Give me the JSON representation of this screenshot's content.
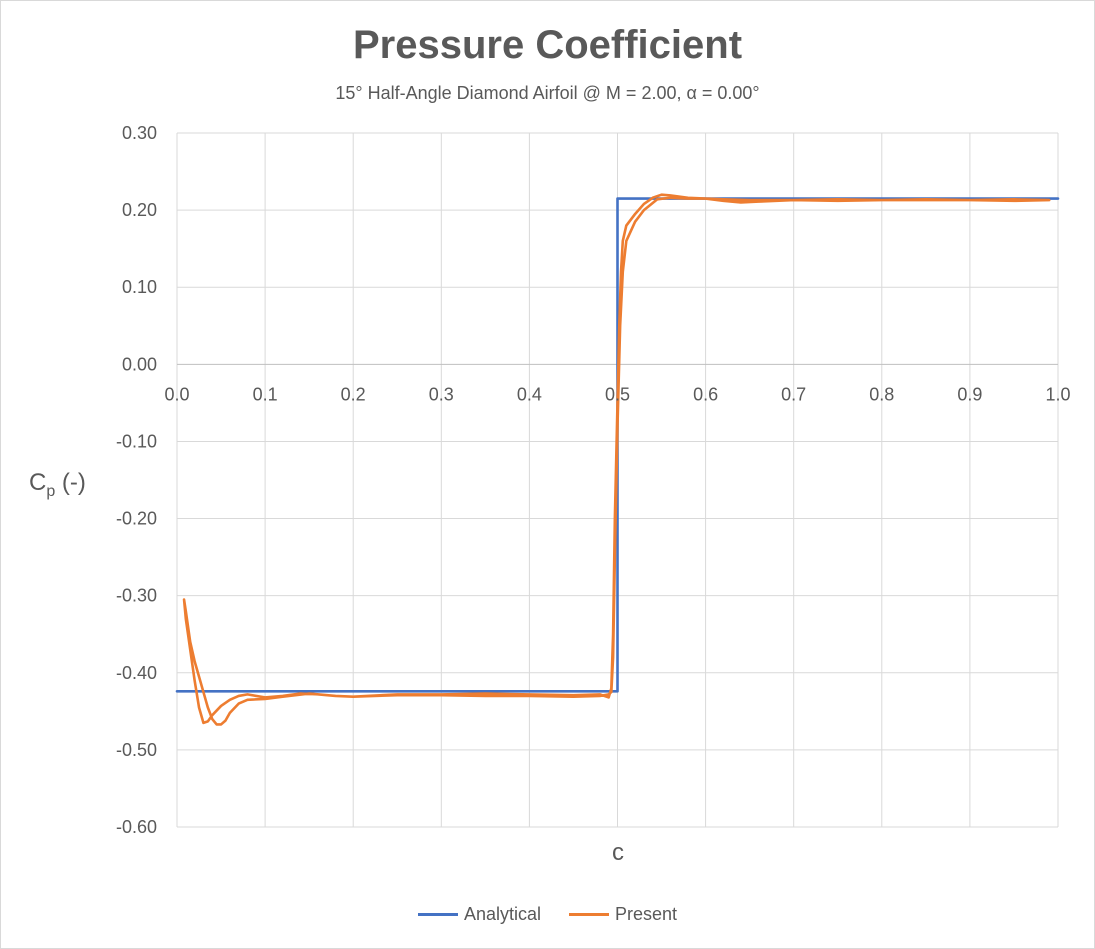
{
  "chart_data": {
    "type": "line",
    "title": "Pressure Coefficient",
    "subtitle": "15° Half-Angle Diamond Airfoil @ M = 2.00, α = 0.00°",
    "xlabel": "c",
    "ylabel": {
      "main": "C",
      "sub": "p",
      "suffix": " (-)"
    },
    "xlim": [
      0.0,
      1.0
    ],
    "ylim": [
      -0.6,
      0.3
    ],
    "xticks": [
      0.0,
      0.1,
      0.2,
      0.3,
      0.4,
      0.5,
      0.6,
      0.7,
      0.8,
      0.9,
      1.0
    ],
    "xtick_labels": [
      "0.0",
      "0.1",
      "0.2",
      "0.3",
      "0.4",
      "0.5",
      "0.6",
      "0.7",
      "0.8",
      "0.9",
      "1.0"
    ],
    "yticks": [
      0.3,
      0.2,
      0.1,
      0.0,
      -0.1,
      -0.2,
      -0.3,
      -0.4,
      -0.5,
      -0.6
    ],
    "ytick_labels": [
      "0.30",
      "0.20",
      "0.10",
      "0.00",
      "-0.10",
      "-0.20",
      "-0.30",
      "-0.40",
      "-0.50",
      "-0.60"
    ],
    "grid": true,
    "legend_position": "bottom",
    "series": [
      {
        "name": "Analytical",
        "color": "#4472C4",
        "points": [
          [
            0.0,
            -0.424
          ],
          [
            0.5,
            -0.424
          ],
          [
            0.5,
            0.215
          ],
          [
            1.0,
            0.215
          ]
        ]
      },
      {
        "name": "Present",
        "color": "#ED7D31",
        "points": [
          [
            0.008,
            -0.305
          ],
          [
            0.01,
            -0.33
          ],
          [
            0.015,
            -0.37
          ],
          [
            0.02,
            -0.41
          ],
          [
            0.025,
            -0.445
          ],
          [
            0.03,
            -0.465
          ],
          [
            0.035,
            -0.463
          ],
          [
            0.04,
            -0.455
          ],
          [
            0.05,
            -0.443
          ],
          [
            0.06,
            -0.435
          ],
          [
            0.07,
            -0.43
          ],
          [
            0.08,
            -0.428
          ],
          [
            0.1,
            -0.432
          ],
          [
            0.12,
            -0.43
          ],
          [
            0.14,
            -0.427
          ],
          [
            0.16,
            -0.428
          ],
          [
            0.18,
            -0.43
          ],
          [
            0.2,
            -0.431
          ],
          [
            0.25,
            -0.428
          ],
          [
            0.3,
            -0.428
          ],
          [
            0.35,
            -0.427
          ],
          [
            0.4,
            -0.428
          ],
          [
            0.45,
            -0.429
          ],
          [
            0.48,
            -0.428
          ],
          [
            0.49,
            -0.432
          ],
          [
            0.493,
            -0.42
          ],
          [
            0.495,
            -0.35
          ],
          [
            0.497,
            -0.2
          ],
          [
            0.5,
            -0.05
          ],
          [
            0.502,
            0.05
          ],
          [
            0.504,
            0.12
          ],
          [
            0.506,
            0.16
          ],
          [
            0.51,
            0.18
          ],
          [
            0.52,
            0.195
          ],
          [
            0.53,
            0.208
          ],
          [
            0.54,
            0.216
          ],
          [
            0.55,
            0.22
          ],
          [
            0.56,
            0.219
          ],
          [
            0.58,
            0.216
          ],
          [
            0.6,
            0.215
          ],
          [
            0.62,
            0.212
          ],
          [
            0.64,
            0.21
          ],
          [
            0.66,
            0.211
          ],
          [
            0.7,
            0.213
          ],
          [
            0.75,
            0.212
          ],
          [
            0.8,
            0.213
          ],
          [
            0.85,
            0.213
          ],
          [
            0.9,
            0.213
          ],
          [
            0.95,
            0.212
          ],
          [
            0.99,
            0.213
          ],
          [
            0.95,
            0.214
          ],
          [
            0.9,
            0.213
          ],
          [
            0.85,
            0.214
          ],
          [
            0.8,
            0.213
          ],
          [
            0.75,
            0.214
          ],
          [
            0.7,
            0.213
          ],
          [
            0.65,
            0.213
          ],
          [
            0.62,
            0.214
          ],
          [
            0.6,
            0.215
          ],
          [
            0.58,
            0.215
          ],
          [
            0.56,
            0.216
          ],
          [
            0.545,
            0.214
          ],
          [
            0.53,
            0.2
          ],
          [
            0.52,
            0.185
          ],
          [
            0.51,
            0.16
          ],
          [
            0.506,
            0.12
          ],
          [
            0.503,
            0.05
          ],
          [
            0.5,
            -0.08
          ],
          [
            0.497,
            -0.25
          ],
          [
            0.495,
            -0.38
          ],
          [
            0.493,
            -0.425
          ],
          [
            0.49,
            -0.428
          ],
          [
            0.48,
            -0.43
          ],
          [
            0.45,
            -0.431
          ],
          [
            0.4,
            -0.43
          ],
          [
            0.35,
            -0.43
          ],
          [
            0.3,
            -0.429
          ],
          [
            0.25,
            -0.429
          ],
          [
            0.2,
            -0.431
          ],
          [
            0.18,
            -0.43
          ],
          [
            0.15,
            -0.427
          ],
          [
            0.12,
            -0.431
          ],
          [
            0.1,
            -0.434
          ],
          [
            0.08,
            -0.435
          ],
          [
            0.07,
            -0.44
          ],
          [
            0.06,
            -0.452
          ],
          [
            0.055,
            -0.462
          ],
          [
            0.05,
            -0.467
          ],
          [
            0.045,
            -0.467
          ],
          [
            0.04,
            -0.46
          ],
          [
            0.035,
            -0.445
          ],
          [
            0.03,
            -0.425
          ],
          [
            0.025,
            -0.405
          ],
          [
            0.02,
            -0.385
          ],
          [
            0.015,
            -0.36
          ],
          [
            0.01,
            -0.32
          ],
          [
            0.008,
            -0.305
          ]
        ]
      }
    ]
  }
}
